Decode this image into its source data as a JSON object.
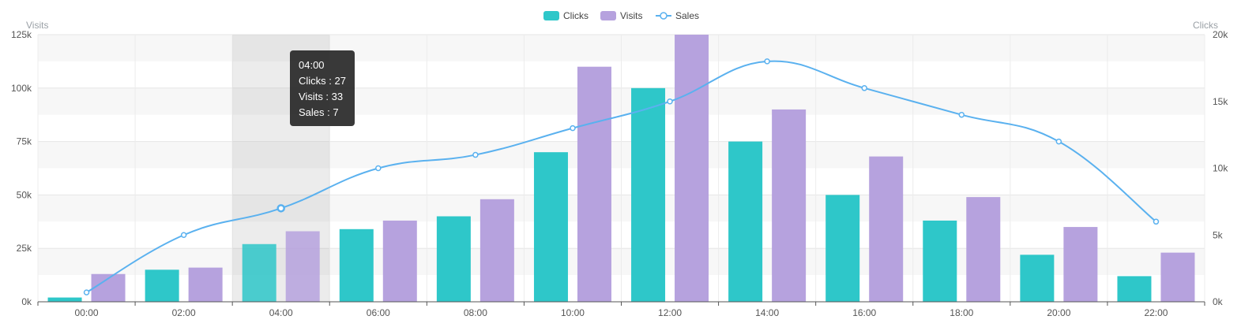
{
  "chart_data": {
    "type": "bar",
    "categories": [
      "00:00",
      "02:00",
      "04:00",
      "06:00",
      "08:00",
      "10:00",
      "12:00",
      "14:00",
      "16:00",
      "18:00",
      "20:00",
      "22:00"
    ],
    "series": [
      {
        "name": "Clicks",
        "type": "bar",
        "axis": "left",
        "color": "#2ec7c9",
        "values": [
          2,
          15,
          27,
          34,
          40,
          70,
          100,
          75,
          50,
          38,
          22,
          12
        ]
      },
      {
        "name": "Visits",
        "type": "bar",
        "axis": "left",
        "color": "#b6a2de",
        "values": [
          13,
          16,
          33,
          38,
          48,
          110,
          125,
          90,
          68,
          49,
          35,
          23
        ]
      },
      {
        "name": "Sales",
        "type": "line",
        "axis": "right",
        "color": "#5ab1ef",
        "values": [
          0.7,
          5,
          7,
          10,
          11,
          13,
          15,
          18,
          16,
          14,
          12,
          6
        ]
      }
    ],
    "left_axis": {
      "label": "Visits",
      "ticks": [
        "0k",
        "25k",
        "50k",
        "75k",
        "100k",
        "125k"
      ],
      "ylim": [
        0,
        125
      ]
    },
    "right_axis": {
      "label": "Clicks",
      "ticks": [
        "0k",
        "5k",
        "10k",
        "15k",
        "20k"
      ],
      "ylim": [
        0,
        20
      ]
    },
    "legend": {
      "placement": "top-center",
      "items": [
        "Clicks",
        "Visits",
        "Sales"
      ]
    },
    "grid": true,
    "highlight_index": 2,
    "tooltip": {
      "title": "04:00",
      "lines": [
        "Clicks : 27",
        "Visits : 33",
        "Sales : 7"
      ]
    }
  }
}
